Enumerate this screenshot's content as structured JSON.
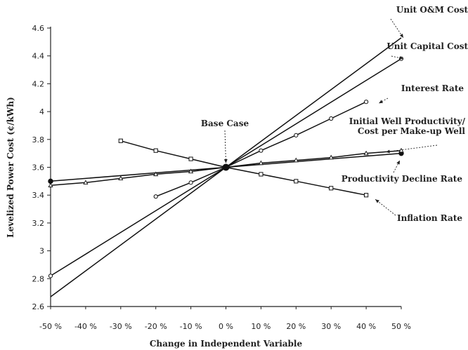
{
  "chart_data": {
    "type": "line",
    "title": "",
    "xlabel": "Change in Independent Variable",
    "ylabel": "Levelized Power Cost (¢/kWh)",
    "xlim": [
      -50,
      50
    ],
    "ylim": [
      2.6,
      4.6
    ],
    "x_ticks": [
      -50,
      -40,
      -30,
      -20,
      -10,
      0,
      10,
      20,
      30,
      40,
      50
    ],
    "x_tick_labels": [
      "-50 %",
      "-40 %",
      "-30 %",
      "-20 %",
      "-10 %",
      "0 %",
      "10 %",
      "20 %",
      "30 %",
      "40 %",
      "50 %"
    ],
    "y_ticks": [
      2.6,
      2.8,
      3.0,
      3.2,
      3.4,
      3.6,
      3.8,
      4.0,
      4.2,
      4.4,
      4.6
    ],
    "y_tick_labels": [
      "2.6",
      "2.8",
      "3",
      "3.2",
      "3.4",
      "3.6",
      "3.8",
      "4",
      "4.2",
      "4.4",
      "4.6"
    ],
    "grid": false,
    "legend": "none",
    "series": [
      {
        "name": "Unit O&M Cost",
        "marker": "none",
        "x": [
          -50,
          0,
          50
        ],
        "y": [
          2.67,
          3.6,
          4.53
        ]
      },
      {
        "name": "Unit Capital Cost",
        "marker": "circle",
        "x": [
          -50,
          0,
          50
        ],
        "y": [
          2.82,
          3.6,
          4.38
        ]
      },
      {
        "name": "Interest Rate",
        "marker": "circle",
        "x": [
          -20,
          -10,
          0,
          10,
          20,
          30,
          40
        ],
        "y": [
          3.39,
          3.49,
          3.6,
          3.72,
          3.83,
          3.95,
          4.07
        ]
      },
      {
        "name": "Initial Well Productivity/Cost per Make-up Well",
        "marker": "filled-circle",
        "x": [
          -50,
          0,
          50
        ],
        "y": [
          3.5,
          3.6,
          3.7
        ]
      },
      {
        "name": "Productivity Decline Rate",
        "marker": "triangle",
        "x": [
          -50,
          -40,
          -30,
          -20,
          -10,
          0,
          10,
          20,
          30,
          40,
          50
        ],
        "y": [
          3.47,
          3.49,
          3.52,
          3.55,
          3.57,
          3.6,
          3.63,
          3.65,
          3.67,
          3.7,
          3.72
        ]
      },
      {
        "name": "Inflation Rate",
        "marker": "square",
        "x": [
          -30,
          -20,
          -10,
          0,
          10,
          20,
          30,
          40
        ],
        "y": [
          3.79,
          3.72,
          3.66,
          3.6,
          3.55,
          3.5,
          3.45,
          3.4
        ]
      }
    ],
    "base_case": {
      "label": "Base Case",
      "x": 0,
      "y": 3.6
    },
    "annotations": [
      {
        "series": 0,
        "lines": [
          "Unit O&M Cost"
        ],
        "target_x": 50,
        "target_y": 4.53
      },
      {
        "series": 1,
        "lines": [
          "Unit Capital Cost"
        ],
        "target_x": 50,
        "target_y": 4.38
      },
      {
        "series": 2,
        "lines": [
          "Interest Rate"
        ],
        "target_x": 43,
        "target_y": 4.06
      },
      {
        "series": 3,
        "lines": [
          "Initial Well Productivity/",
          "Cost per Make-up Well"
        ],
        "target_x": 45,
        "target_y": 3.71
      },
      {
        "series": 4,
        "lines": [
          "Productivity Decline Rate"
        ],
        "target_x": 49,
        "target_y": 3.65
      },
      {
        "series": 5,
        "lines": [
          "Inflation Rate"
        ],
        "target_x": 42,
        "target_y": 3.37
      }
    ]
  }
}
